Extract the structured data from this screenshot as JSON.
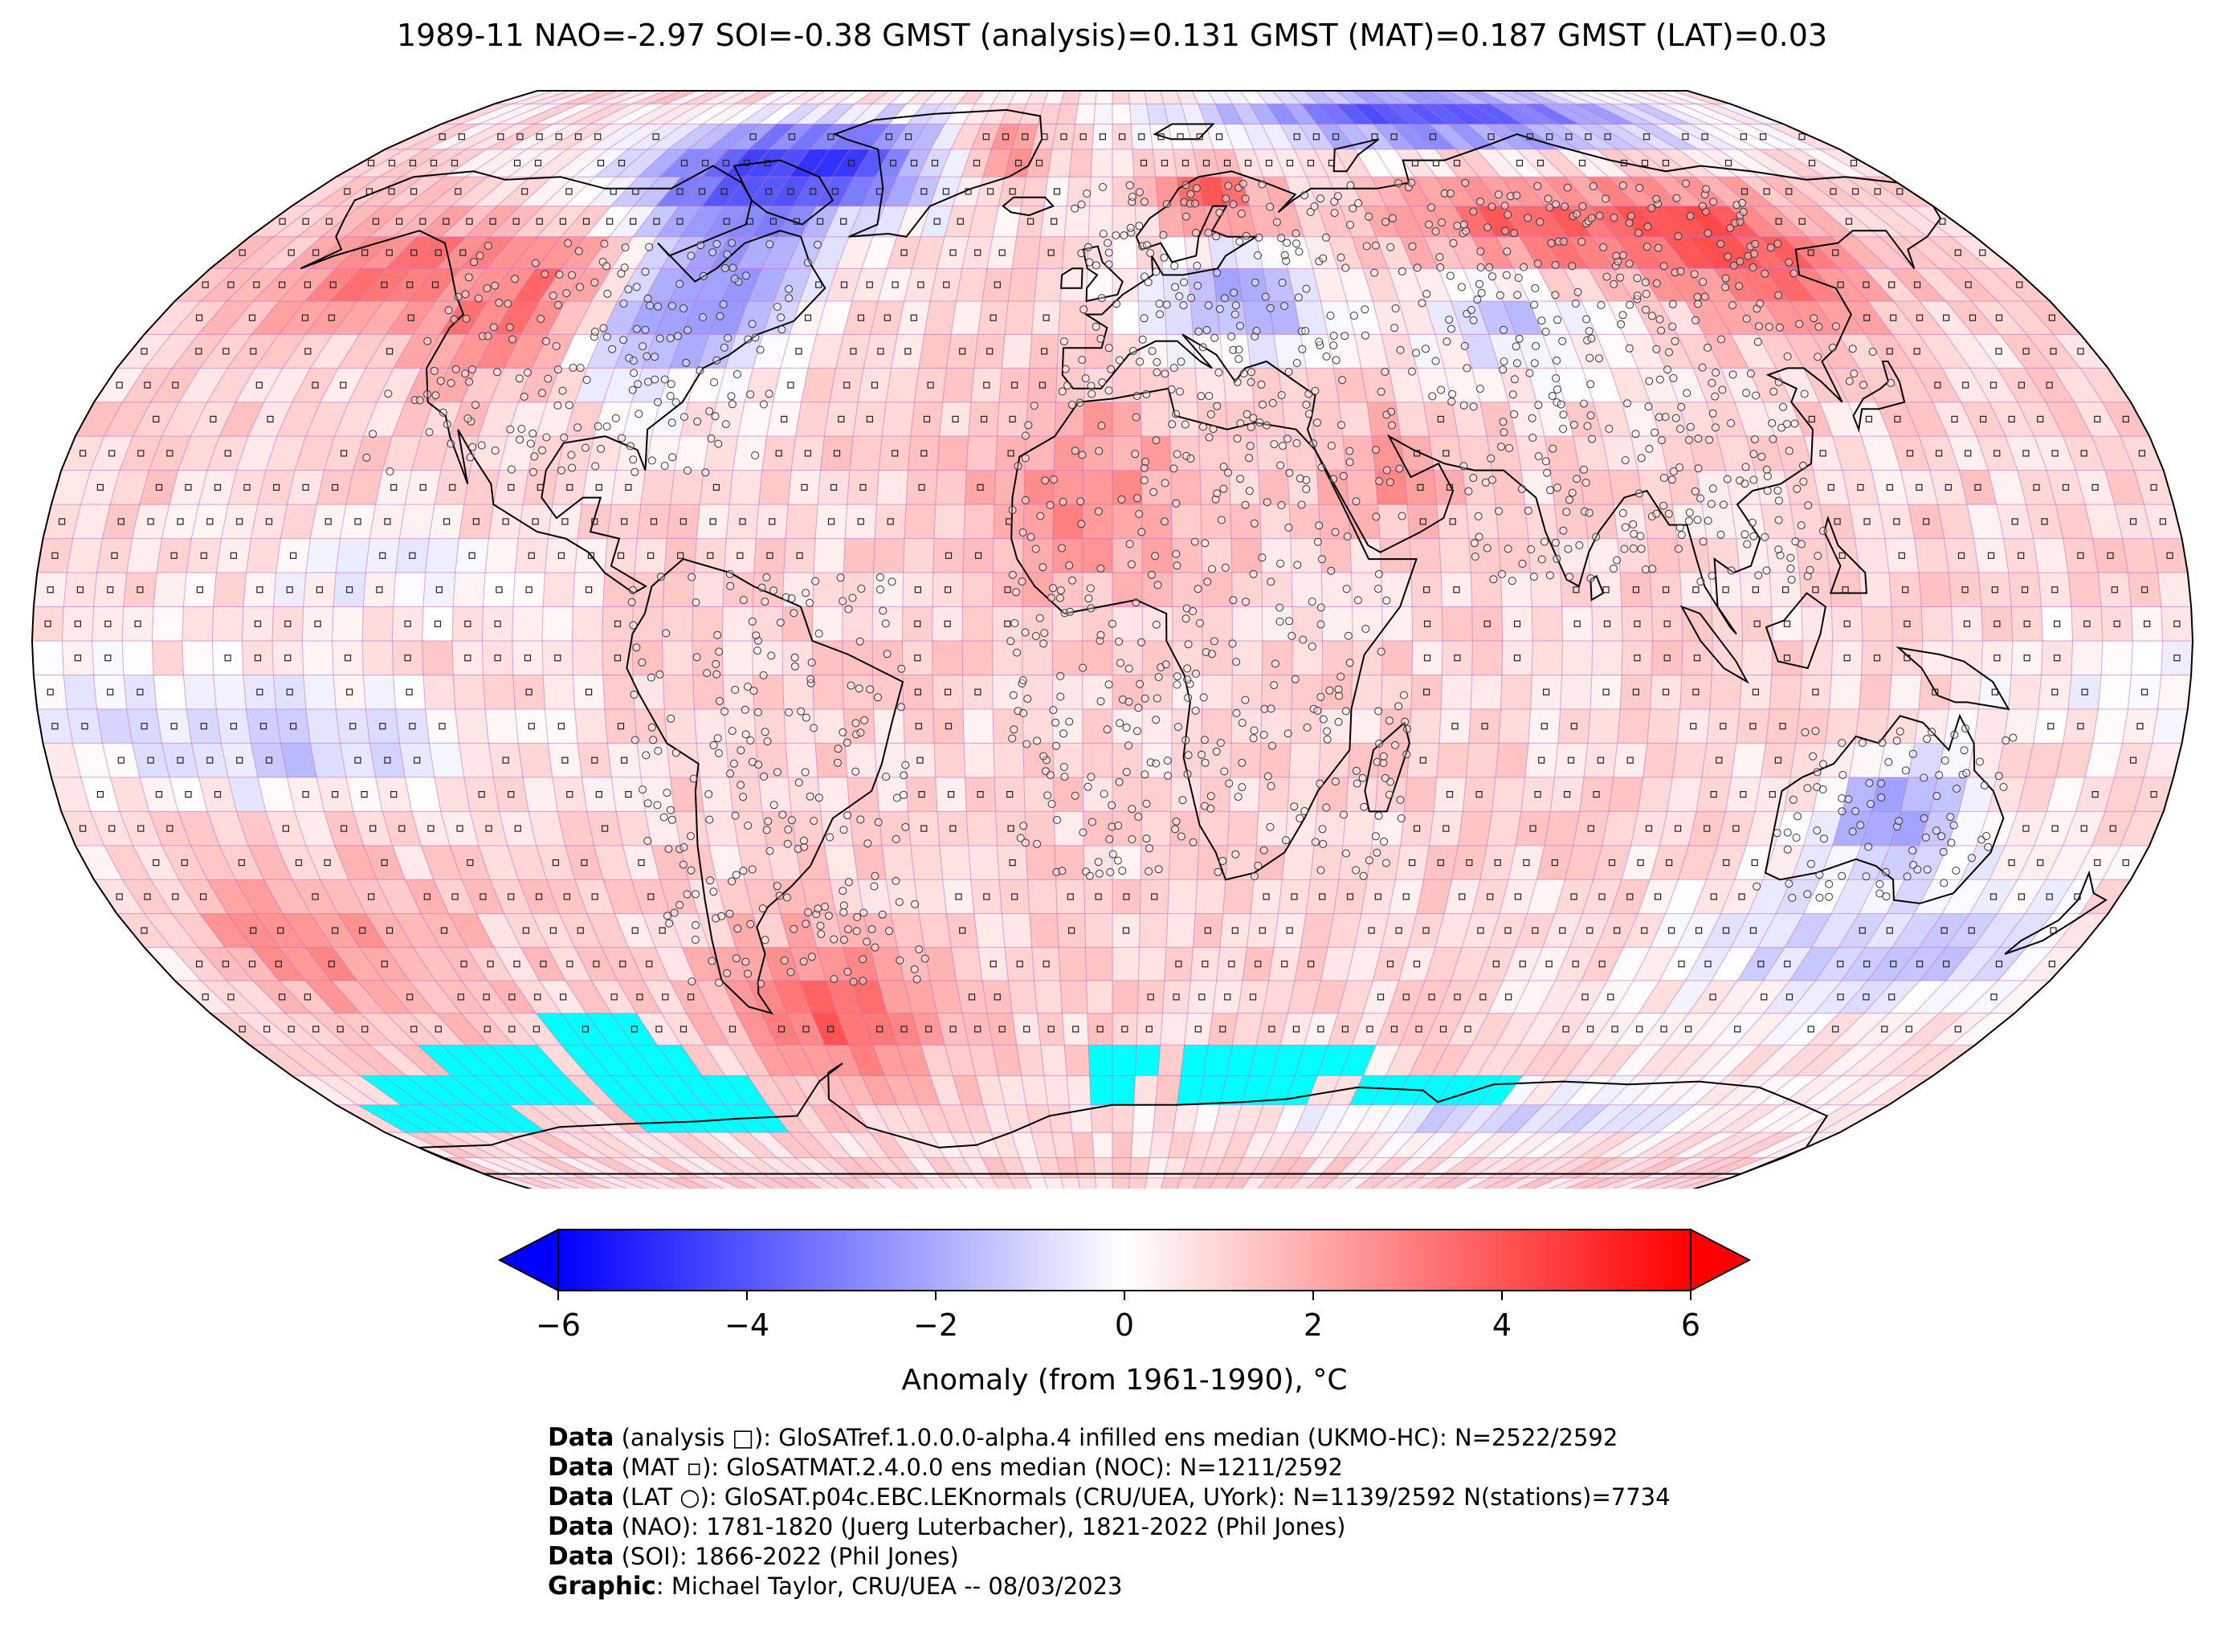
{
  "title": "1989-11 NAO=-2.97 SOI=-0.38 GMST (analysis)=0.131 GMST (MAT)=0.187 GMST (LAT)=0.03",
  "colors": {
    "cold": "#0000ff",
    "neutral": "#ffffff",
    "warm": "#ff0000",
    "missing_sea_ice": "#00ffff",
    "grid_lines": "#c060c0",
    "coastlines": "#000000"
  },
  "colorbar": {
    "label": "Anomaly (from 1961-1990), °C",
    "min": -6,
    "max": 6,
    "ticks": [
      "−6",
      "−4",
      "−2",
      "0",
      "2",
      "4",
      "6"
    ],
    "extend": "both"
  },
  "map": {
    "projection": "Robinson",
    "grid_resolution_deg": 5,
    "anomaly_regions": [
      {
        "region": "Northern Canada / Baffin Bay",
        "anomaly": -5.0
      },
      {
        "region": "Eastern USA / Hudson Bay",
        "anomaly": -3.5
      },
      {
        "region": "Western North America",
        "anomaly": 2.0
      },
      {
        "region": "Greenland east coast",
        "anomaly": 2.5
      },
      {
        "region": "Scandinavia",
        "anomaly": 2.5
      },
      {
        "region": "Eastern Europe",
        "anomaly": -2.5
      },
      {
        "region": "Arctic north of Siberia",
        "anomaly": -4.5
      },
      {
        "region": "Central Siberia",
        "anomaly": 2.5
      },
      {
        "region": "Eastern Siberia",
        "anomaly": 3.0
      },
      {
        "region": "West Africa / Sahara",
        "anomaly": 2.0
      },
      {
        "region": "Arabia",
        "anomaly": 1.5
      },
      {
        "region": "Australia",
        "anomaly": -2.5
      },
      {
        "region": "Southern Ocean (south of Australia)",
        "anomaly": -2.5
      },
      {
        "region": "Patagonia / South Atlantic",
        "anomaly": 3.0
      },
      {
        "region": "Tropical oceans",
        "anomaly": 0.8
      },
      {
        "region": "Antarctica",
        "anomaly": 1.0
      }
    ],
    "legend_symbols": {
      "analysis": "square",
      "MAT": "small square",
      "LAT": "circle"
    }
  },
  "credits": [
    {
      "bold": "Data",
      "text": " (analysis □): GloSATref.1.0.0.0-alpha.4 infilled ens median (UKMO-HC): N=2522/2592"
    },
    {
      "bold": "Data",
      "text": " (MAT ▫): GloSATMAT.2.4.0.0 ens median (NOC): N=1211/2592"
    },
    {
      "bold": "Data",
      "text": " (LAT ○): GloSAT.p04c.EBC.LEKnormals (CRU/UEA, UYork): N=1139/2592 N(stations)=7734"
    },
    {
      "bold": "Data",
      "text": " (NAO): 1781-1820 (Juerg Luterbacher), 1821-2022 (Phil Jones)"
    },
    {
      "bold": "Data",
      "text": " (SOI): 1866-2022 (Phil Jones)"
    },
    {
      "bold": "Graphic",
      "text": ": Michael Taylor, CRU/UEA -- 08/03/2023"
    }
  ]
}
